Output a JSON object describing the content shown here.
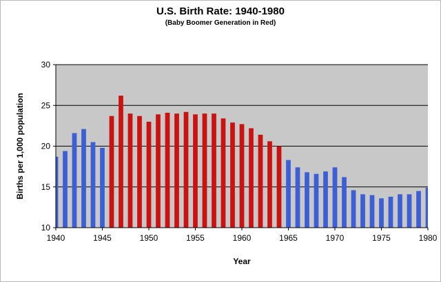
{
  "chart_data": {
    "type": "bar",
    "title": "U.S. Birth Rate: 1940-1980",
    "subtitle": "(Baby Boomer Generation in Red)",
    "xlabel": "Year",
    "ylabel": "Births per 1,000 population",
    "ylim": [
      10,
      30
    ],
    "yticks": [
      10,
      15,
      20,
      25,
      30
    ],
    "xticks": [
      1940,
      1945,
      1950,
      1955,
      1960,
      1965,
      1970,
      1975,
      1980
    ],
    "grid": true,
    "legend": "none",
    "colors": {
      "boomer": "#cc1111",
      "other": "#3d5fd6",
      "plot_bg": "#c8c8c8",
      "grid": "#000000"
    },
    "series": [
      {
        "x": [
          1940,
          1941,
          1942,
          1943,
          1944,
          1945,
          1946,
          1947,
          1948,
          1949,
          1950,
          1951,
          1952,
          1953,
          1954,
          1955,
          1956,
          1957,
          1958,
          1959,
          1960,
          1961,
          1962,
          1963,
          1964,
          1965,
          1966,
          1967,
          1968,
          1969,
          1970,
          1971,
          1972,
          1973,
          1974,
          1975,
          1976,
          1977,
          1978,
          1979,
          1980
        ],
        "values": [
          18.7,
          19.4,
          21.6,
          22.1,
          20.5,
          19.8,
          23.7,
          26.2,
          24.0,
          23.7,
          23.0,
          23.9,
          24.1,
          24.0,
          24.2,
          23.9,
          24.0,
          24.0,
          23.4,
          22.9,
          22.7,
          22.2,
          21.4,
          20.6,
          20.0,
          18.3,
          17.4,
          16.8,
          16.6,
          16.9,
          17.4,
          16.2,
          14.6,
          14.1,
          14.0,
          13.6,
          13.8,
          14.1,
          14.1,
          14.5,
          14.9
        ],
        "boomer": [
          false,
          false,
          false,
          false,
          false,
          false,
          true,
          true,
          true,
          true,
          true,
          true,
          true,
          true,
          true,
          true,
          true,
          true,
          true,
          true,
          true,
          true,
          true,
          true,
          true,
          false,
          false,
          false,
          false,
          false,
          false,
          false,
          false,
          false,
          false,
          false,
          false,
          false,
          false,
          false,
          false
        ]
      }
    ]
  }
}
